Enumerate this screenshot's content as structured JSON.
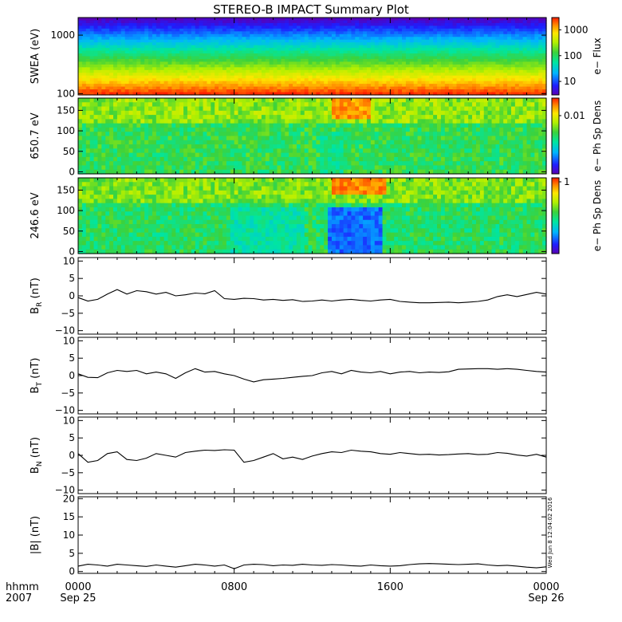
{
  "title": "STEREO-B IMPACT Summary Plot",
  "stamp": "Wed Jun  8 12:04:02 2016",
  "time_axis": {
    "unit_label": "hhmm",
    "year_label": "2007",
    "ticks": [
      {
        "hour": 0,
        "time": "0000",
        "date": "Sep 25"
      },
      {
        "hour": 8,
        "time": "0800",
        "date": ""
      },
      {
        "hour": 16,
        "time": "1600",
        "date": ""
      },
      {
        "hour": 24,
        "time": "0000",
        "date": "Sep 26"
      }
    ],
    "range_hours": [
      0,
      24
    ]
  },
  "colors": {
    "background": "#ffffff",
    "axes": "#000000",
    "line": "#000000"
  },
  "chart_data": [
    {
      "type": "heatmap",
      "ylabel": "SWEA (eV)",
      "yscale": "log",
      "ylim": [
        95,
        2000
      ],
      "yticks": [
        "1000",
        "100"
      ],
      "ytick_values": [
        1000,
        100
      ],
      "colorbar": {
        "label": "e− Flux",
        "scale": "log",
        "ticks": [
          "1000",
          "100",
          "10"
        ],
        "tick_values": [
          1000,
          100,
          10
        ],
        "range": [
          3,
          3000
        ]
      },
      "description_rows": [
        {
          "energy": 1800,
          "level": 0.05
        },
        {
          "energy": 1300,
          "level": 0.22
        },
        {
          "energy": 900,
          "level": 0.42
        },
        {
          "energy": 600,
          "level": 0.55
        },
        {
          "energy": 350,
          "level": 0.68
        },
        {
          "energy": 220,
          "level": 0.8
        },
        {
          "energy": 130,
          "level": 0.95
        }
      ]
    },
    {
      "type": "heatmap",
      "ylabel": "650.7 eV",
      "ylim": [
        -5,
        180
      ],
      "yticks": [
        "150",
        "100",
        "50",
        "0"
      ],
      "ytick_values": [
        150,
        100,
        50,
        0
      ],
      "colorbar": {
        "label": "e− Ph Sp Dens",
        "scale": "log",
        "ticks": [
          "0.01"
        ],
        "tick_values": [
          0.01
        ]
      },
      "features": [
        {
          "t_start": 13.0,
          "t_end": 15.0,
          "angle_min": 130,
          "angle_max": 180,
          "level": 0.88
        },
        {
          "t_start": 12.5,
          "t_end": 13.5,
          "angle_min": 0,
          "angle_max": 100,
          "level": 0.45
        }
      ]
    },
    {
      "type": "heatmap",
      "ylabel": "246.6 eV",
      "ylim": [
        -5,
        180
      ],
      "yticks": [
        "150",
        "100",
        "50",
        "0"
      ],
      "ytick_values": [
        150,
        100,
        50,
        0
      ],
      "colorbar": {
        "label": "e− Ph Sp Dens",
        "scale": "log",
        "ticks": [
          "1"
        ],
        "tick_values": [
          1
        ]
      },
      "features": [
        {
          "t_start": 7.8,
          "t_end": 11.5,
          "angle_min": 0,
          "angle_max": 105,
          "level": 0.42
        },
        {
          "t_start": 12.8,
          "t_end": 15.6,
          "angle_min": 0,
          "angle_max": 110,
          "level": 0.2
        },
        {
          "t_start": 13.0,
          "t_end": 15.8,
          "angle_min": 140,
          "angle_max": 180,
          "level": 0.9
        }
      ]
    },
    {
      "type": "line",
      "ylabel": "B_R (nT)",
      "ylabel_main": "B",
      "ylabel_sub": "R",
      "ylabel_tail": "(nT)",
      "ylim": [
        -11,
        11
      ],
      "yticks": [
        "10",
        "5",
        "0",
        "−5",
        "−10"
      ],
      "ytick_values": [
        10,
        5,
        0,
        -5,
        -10
      ],
      "x": [
        0,
        0.5,
        1,
        1.5,
        2,
        2.5,
        3,
        3.5,
        4,
        4.5,
        5,
        5.5,
        6,
        6.5,
        7,
        7.5,
        8,
        8.5,
        9,
        9.5,
        10,
        10.5,
        11,
        11.5,
        12,
        12.5,
        13,
        13.5,
        14,
        14.5,
        15,
        15.5,
        16,
        16.5,
        17,
        17.5,
        18,
        18.5,
        19,
        19.5,
        20,
        20.5,
        21,
        21.5,
        22,
        22.5,
        23,
        23.5,
        24
      ],
      "values": [
        -0.5,
        -1.5,
        -1.0,
        0.5,
        1.8,
        0.5,
        1.5,
        1.2,
        0.5,
        1.0,
        0.0,
        0.3,
        0.8,
        0.6,
        1.5,
        -0.8,
        -1.0,
        -0.7,
        -0.8,
        -1.2,
        -1.0,
        -1.3,
        -1.1,
        -1.6,
        -1.5,
        -1.2,
        -1.5,
        -1.2,
        -1.0,
        -1.3,
        -1.5,
        -1.2,
        -1.0,
        -1.6,
        -1.8,
        -2.0,
        -2.0,
        -1.9,
        -1.8,
        -2.0,
        -1.8,
        -1.6,
        -1.2,
        -0.2,
        0.3,
        -0.2,
        0.4,
        1.0,
        0.5
      ]
    },
    {
      "type": "line",
      "ylabel": "B_T (nT)",
      "ylabel_main": "B",
      "ylabel_sub": "T",
      "ylabel_tail": "(nT)",
      "ylim": [
        -11,
        11
      ],
      "yticks": [
        "10",
        "5",
        "0",
        "−5",
        "−10"
      ],
      "ytick_values": [
        10,
        5,
        0,
        -5,
        -10
      ],
      "x": [
        0,
        0.5,
        1,
        1.5,
        2,
        2.5,
        3,
        3.5,
        4,
        4.5,
        5,
        5.5,
        6,
        6.5,
        7,
        7.5,
        8,
        8.5,
        9,
        9.5,
        10,
        10.5,
        11,
        11.5,
        12,
        12.5,
        13,
        13.5,
        14,
        14.5,
        15,
        15.5,
        16,
        16.5,
        17,
        17.5,
        18,
        18.5,
        19,
        19.5,
        20,
        20.5,
        21,
        21.5,
        22,
        22.5,
        23,
        23.5,
        24
      ],
      "values": [
        0.5,
        -0.5,
        -0.6,
        0.8,
        1.5,
        1.2,
        1.5,
        0.5,
        1.0,
        0.5,
        -0.8,
        0.8,
        2.0,
        1.0,
        1.2,
        0.5,
        0.0,
        -1.0,
        -1.8,
        -1.2,
        -1.0,
        -0.8,
        -0.5,
        -0.2,
        0.0,
        0.8,
        1.2,
        0.5,
        1.5,
        1.0,
        0.8,
        1.2,
        0.5,
        1.0,
        1.2,
        0.8,
        1.0,
        0.9,
        1.1,
        1.8,
        1.9,
        2.0,
        2.0,
        1.8,
        2.0,
        1.8,
        1.5,
        1.2,
        1.0
      ]
    },
    {
      "type": "line",
      "ylabel": "B_N (nT)",
      "ylabel_main": "B",
      "ylabel_sub": "N",
      "ylabel_tail": "(nT)",
      "ylim": [
        -11,
        11
      ],
      "yticks": [
        "10",
        "5",
        "0",
        "−5",
        "−10"
      ],
      "ytick_values": [
        10,
        5,
        0,
        -5,
        -10
      ],
      "x": [
        0,
        0.5,
        1,
        1.5,
        2,
        2.5,
        3,
        3.5,
        4,
        4.5,
        5,
        5.5,
        6,
        6.5,
        7,
        7.5,
        8,
        8.5,
        9,
        9.5,
        10,
        10.5,
        11,
        11.5,
        12,
        12.5,
        13,
        13.5,
        14,
        14.5,
        15,
        15.5,
        16,
        16.5,
        17,
        17.5,
        18,
        18.5,
        19,
        19.5,
        20,
        20.5,
        21,
        21.5,
        22,
        22.5,
        23,
        23.5,
        24
      ],
      "values": [
        0.5,
        -2.0,
        -1.5,
        0.5,
        1.0,
        -1.2,
        -1.5,
        -0.8,
        0.5,
        0.0,
        -0.5,
        0.8,
        1.2,
        1.5,
        1.4,
        1.6,
        1.5,
        -2.0,
        -1.5,
        -0.5,
        0.5,
        -1.0,
        -0.5,
        -1.2,
        -0.2,
        0.5,
        1.0,
        0.8,
        1.5,
        1.2,
        1.0,
        0.5,
        0.3,
        0.8,
        0.5,
        0.2,
        0.3,
        0.1,
        0.2,
        0.4,
        0.5,
        0.2,
        0.3,
        0.8,
        0.6,
        0.1,
        -0.2,
        0.3,
        -0.5
      ]
    },
    {
      "type": "line",
      "ylabel": "|B| (nT)",
      "ylim": [
        -0.5,
        20.5
      ],
      "yticks": [
        "20",
        "15",
        "10",
        "5",
        "0"
      ],
      "ytick_values": [
        20,
        15,
        10,
        5,
        0
      ],
      "x": [
        0,
        0.5,
        1,
        1.5,
        2,
        2.5,
        3,
        3.5,
        4,
        4.5,
        5,
        5.5,
        6,
        6.5,
        7,
        7.5,
        8,
        8.5,
        9,
        9.5,
        10,
        10.5,
        11,
        11.5,
        12,
        12.5,
        13,
        13.5,
        14,
        14.5,
        15,
        15.5,
        16,
        16.5,
        17,
        17.5,
        18,
        18.5,
        19,
        19.5,
        20,
        20.5,
        21,
        21.5,
        22,
        22.5,
        23,
        23.5,
        24
      ],
      "values": [
        1.5,
        2.0,
        1.8,
        1.5,
        2.0,
        1.8,
        1.6,
        1.4,
        1.8,
        1.5,
        1.2,
        1.6,
        2.0,
        1.8,
        1.5,
        1.8,
        0.8,
        1.8,
        2.0,
        1.9,
        1.6,
        1.8,
        1.7,
        2.0,
        1.8,
        1.7,
        1.9,
        1.8,
        1.6,
        1.5,
        1.8,
        1.6,
        1.5,
        1.6,
        1.9,
        2.1,
        2.2,
        2.1,
        2.0,
        1.9,
        2.0,
        2.1,
        1.8,
        1.6,
        1.7,
        1.5,
        1.2,
        1.0,
        1.3
      ]
    }
  ]
}
